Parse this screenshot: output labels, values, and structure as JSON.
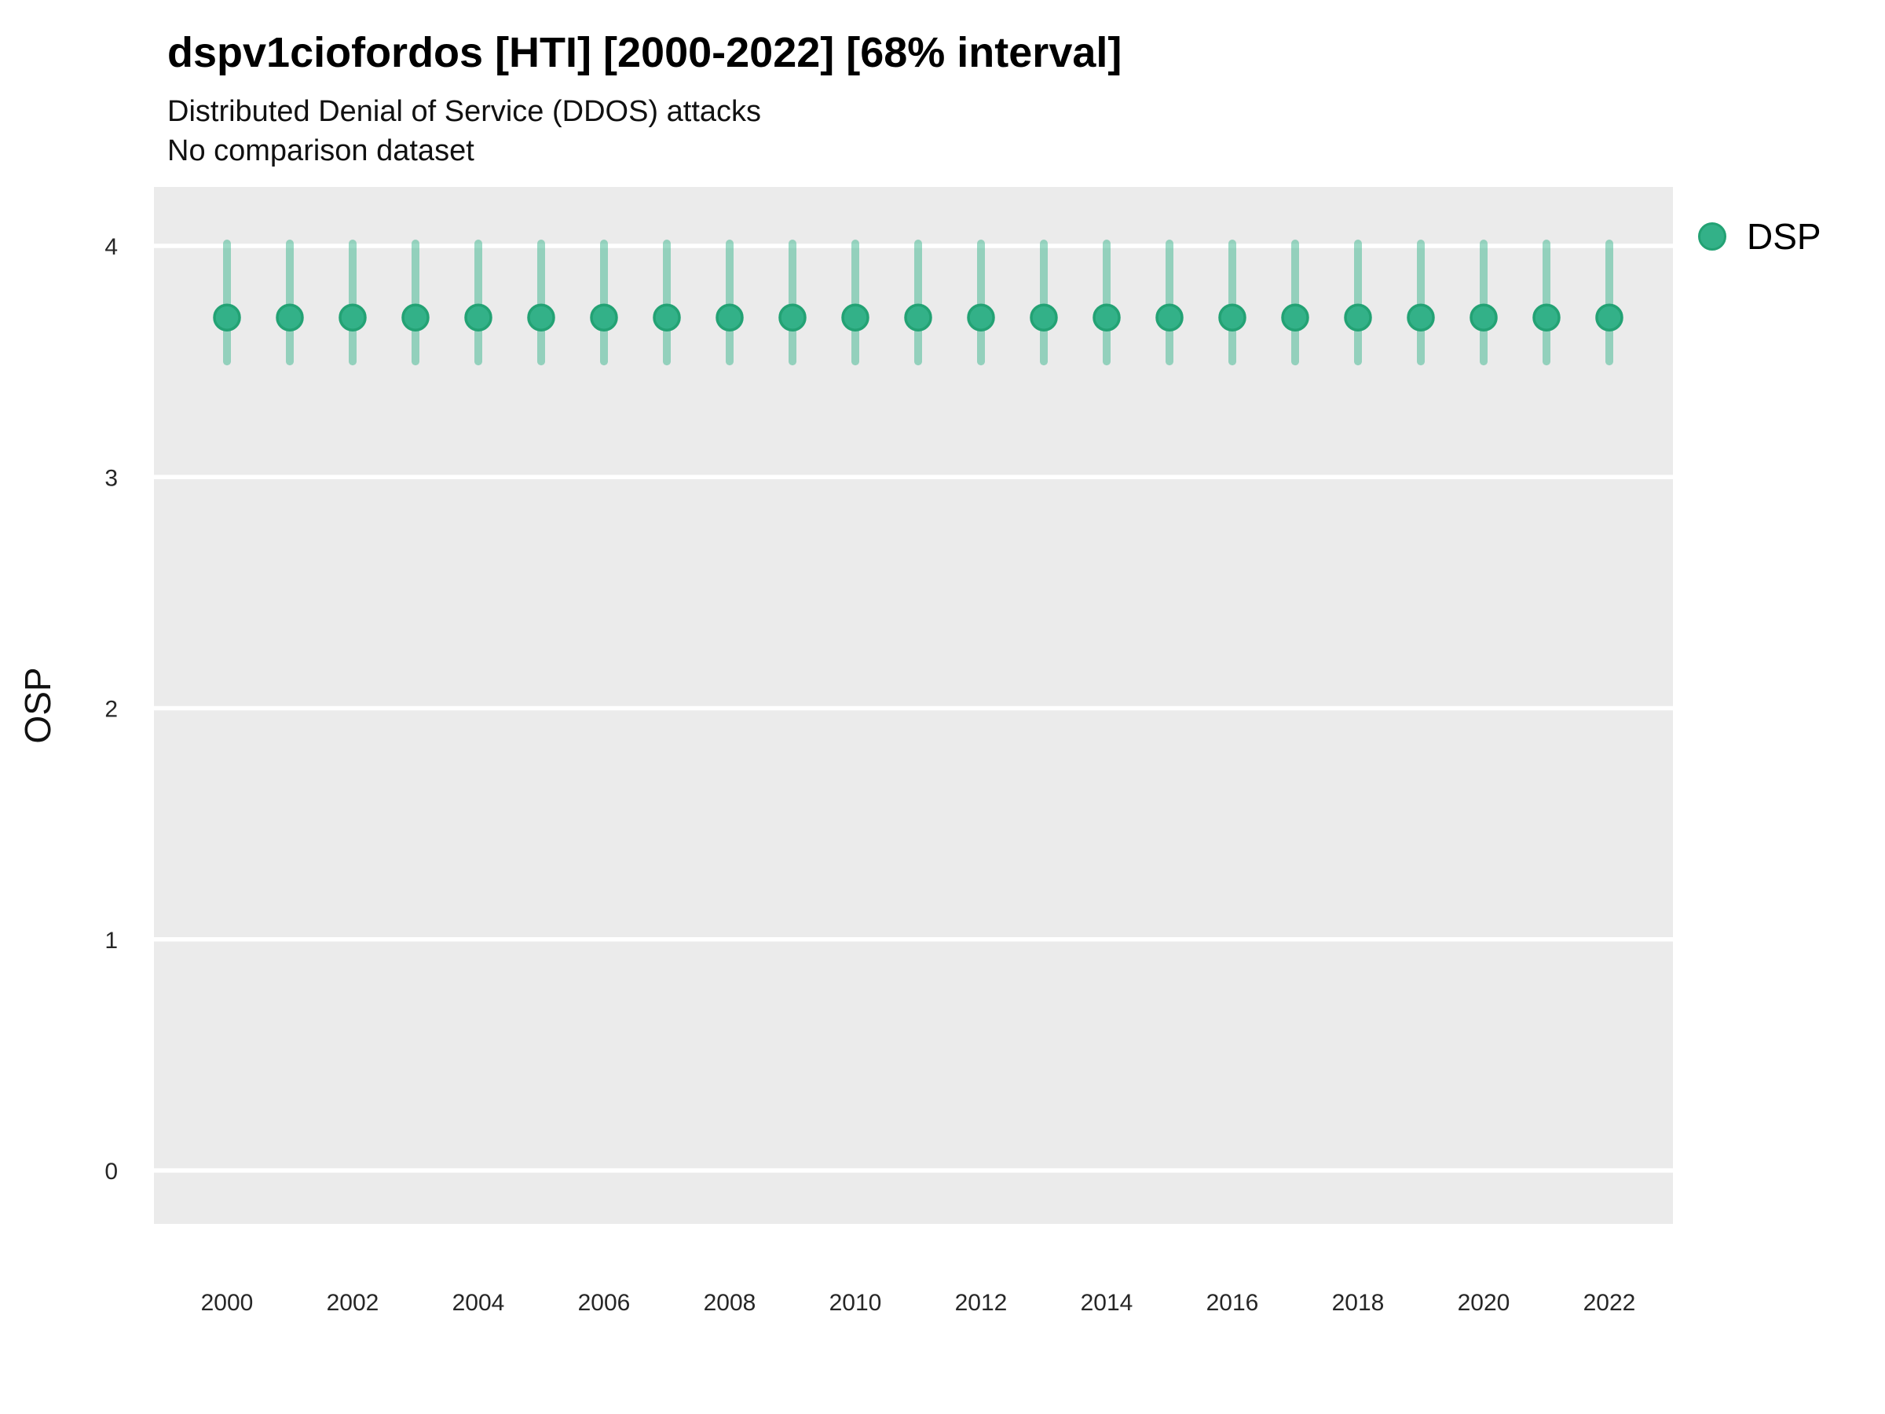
{
  "header": {
    "title": "dspv1ciofordos [HTI] [2000-2022] [68% interval]",
    "subtitle1": "Distributed Denial of Service (DDOS) attacks",
    "subtitle2": "No comparison dataset"
  },
  "axes": {
    "y_label": "OSP",
    "x_label": ""
  },
  "legend": {
    "items": [
      {
        "label": "DSP",
        "marker": "circle-icon",
        "color": "#33b188",
        "stroke": "#23a274"
      }
    ],
    "position": "right"
  },
  "colors": {
    "panel_background": "#EBEBEB",
    "gridline": "#FFFFFF",
    "point_fill": "#33b188",
    "point_stroke": "#23a274",
    "errorbar": "rgba(51,177,136,0.48)",
    "tick_text": "#262626",
    "text": "#000000"
  },
  "chart_data": {
    "type": "scatter",
    "title": "dspv1ciofordos [HTI] [2000-2022] [68% interval]",
    "subtitle": "Distributed Denial of Service (DDOS) attacks",
    "note": "No comparison dataset",
    "xlabel": "",
    "ylabel": "OSP",
    "x": [
      2000,
      2001,
      2002,
      2003,
      2004,
      2005,
      2006,
      2007,
      2008,
      2009,
      2010,
      2011,
      2012,
      2013,
      2014,
      2015,
      2016,
      2017,
      2018,
      2019,
      2020,
      2021,
      2022
    ],
    "series": [
      {
        "name": "DSP",
        "values": [
          3.69,
          3.69,
          3.69,
          3.69,
          3.69,
          3.69,
          3.69,
          3.69,
          3.69,
          3.69,
          3.69,
          3.69,
          3.69,
          3.69,
          3.69,
          3.69,
          3.69,
          3.69,
          3.69,
          3.69,
          3.69,
          3.69,
          3.69
        ],
        "lo": [
          3.5,
          3.5,
          3.5,
          3.5,
          3.5,
          3.5,
          3.5,
          3.5,
          3.5,
          3.5,
          3.5,
          3.5,
          3.5,
          3.5,
          3.5,
          3.5,
          3.5,
          3.5,
          3.5,
          3.5,
          3.5,
          3.5,
          3.5
        ],
        "hi": [
          4.01,
          4.01,
          4.01,
          4.01,
          4.01,
          4.01,
          4.01,
          4.01,
          4.01,
          4.01,
          4.01,
          4.01,
          4.01,
          4.01,
          4.01,
          4.01,
          4.01,
          4.01,
          4.01,
          4.01,
          4.01,
          4.01,
          4.01
        ],
        "interval": "68%"
      }
    ],
    "yticks": [
      0,
      1,
      2,
      3,
      4
    ],
    "xticks": [
      2000,
      2002,
      2004,
      2006,
      2008,
      2010,
      2012,
      2014,
      2016,
      2018,
      2020,
      2022
    ],
    "ylim": [
      -0.24,
      4.26
    ],
    "grid": "major horizontal, white on grey panel",
    "legend_position": "right"
  }
}
